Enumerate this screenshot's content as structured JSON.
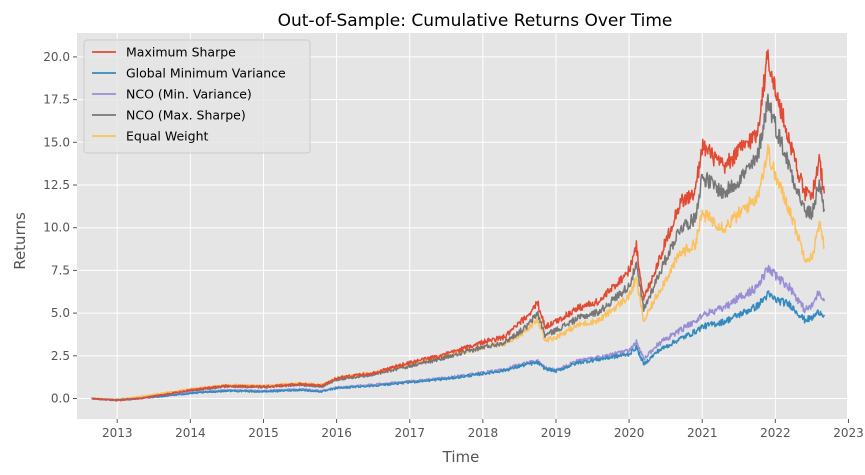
{
  "chart_data": {
    "type": "line",
    "title": "Out-of-Sample: Cumulative Returns Over Time",
    "xlabel": "Time",
    "ylabel": "Returns",
    "xlim": [
      2012.45,
      2022.98
    ],
    "ylim": [
      -1.2,
      21.4
    ],
    "x_ticks": [
      2013,
      2014,
      2015,
      2016,
      2017,
      2018,
      2019,
      2020,
      2021,
      2022,
      2023
    ],
    "x_tick_labels": [
      "2013",
      "2014",
      "2015",
      "2016",
      "2017",
      "2018",
      "2019",
      "2020",
      "2021",
      "2022",
      "2023"
    ],
    "y_ticks": [
      0.0,
      2.5,
      5.0,
      7.5,
      10.0,
      12.5,
      15.0,
      17.5,
      20.0
    ],
    "y_tick_labels": [
      "0.0",
      "2.5",
      "5.0",
      "7.5",
      "10.0",
      "12.5",
      "15.0",
      "17.5",
      "20.0"
    ],
    "grid": true,
    "background": "#e5e5e5",
    "legend_position": "top-left",
    "series": [
      {
        "name": "Maximum Sharpe",
        "color": "#e24a33",
        "x": [
          2012.65,
          2012.8,
          2013.0,
          2013.3,
          2013.6,
          2014.0,
          2014.5,
          2015.0,
          2015.5,
          2015.8,
          2016.0,
          2016.5,
          2017.0,
          2017.5,
          2018.0,
          2018.3,
          2018.6,
          2018.75,
          2018.85,
          2019.0,
          2019.3,
          2019.6,
          2020.0,
          2020.1,
          2020.2,
          2020.4,
          2020.7,
          2020.9,
          2021.0,
          2021.3,
          2021.5,
          2021.75,
          2021.9,
          2022.0,
          2022.2,
          2022.4,
          2022.5,
          2022.6,
          2022.67
        ],
        "y": [
          0.0,
          -0.05,
          -0.1,
          0.0,
          0.2,
          0.5,
          0.75,
          0.7,
          0.85,
          0.75,
          1.2,
          1.5,
          2.1,
          2.6,
          3.3,
          3.6,
          4.8,
          5.6,
          4.2,
          4.5,
          5.3,
          5.7,
          7.5,
          8.9,
          5.8,
          8.0,
          11.5,
          12.0,
          14.8,
          13.5,
          14.5,
          15.5,
          20.2,
          18.0,
          15.0,
          12.0,
          11.8,
          14.0,
          12.0
        ]
      },
      {
        "name": "Global Minimum Variance",
        "color": "#348abd",
        "x": [
          2012.65,
          2012.8,
          2013.0,
          2013.3,
          2013.6,
          2014.0,
          2014.5,
          2015.0,
          2015.5,
          2015.8,
          2016.0,
          2016.5,
          2017.0,
          2017.5,
          2018.0,
          2018.3,
          2018.6,
          2018.75,
          2018.85,
          2019.0,
          2019.3,
          2019.6,
          2020.0,
          2020.1,
          2020.2,
          2020.4,
          2020.7,
          2020.9,
          2021.0,
          2021.3,
          2021.5,
          2021.75,
          2021.9,
          2022.0,
          2022.2,
          2022.4,
          2022.5,
          2022.6,
          2022.67
        ],
        "y": [
          0.0,
          -0.05,
          -0.08,
          0.0,
          0.12,
          0.3,
          0.45,
          0.4,
          0.5,
          0.4,
          0.6,
          0.75,
          0.95,
          1.15,
          1.45,
          1.65,
          2.0,
          2.1,
          1.75,
          1.6,
          2.1,
          2.3,
          2.6,
          3.0,
          2.0,
          2.8,
          3.5,
          3.9,
          4.2,
          4.5,
          4.9,
          5.4,
          6.1,
          5.8,
          5.5,
          4.6,
          4.7,
          5.1,
          4.9
        ]
      },
      {
        "name": "NCO (Min. Variance)",
        "color": "#988ed5",
        "x": [
          2012.65,
          2012.8,
          2013.0,
          2013.3,
          2013.6,
          2014.0,
          2014.5,
          2015.0,
          2015.5,
          2015.8,
          2016.0,
          2016.5,
          2017.0,
          2017.5,
          2018.0,
          2018.3,
          2018.6,
          2018.75,
          2018.85,
          2019.0,
          2019.3,
          2019.6,
          2020.0,
          2020.1,
          2020.2,
          2020.4,
          2020.7,
          2020.9,
          2021.0,
          2021.3,
          2021.5,
          2021.75,
          2021.9,
          2022.0,
          2022.2,
          2022.4,
          2022.5,
          2022.6,
          2022.67
        ],
        "y": [
          0.0,
          -0.05,
          -0.08,
          0.0,
          0.15,
          0.35,
          0.5,
          0.45,
          0.55,
          0.45,
          0.65,
          0.8,
          1.0,
          1.2,
          1.5,
          1.7,
          2.1,
          2.2,
          1.8,
          1.65,
          2.2,
          2.4,
          2.8,
          3.3,
          2.3,
          3.2,
          4.0,
          4.5,
          4.9,
          5.3,
          5.9,
          6.5,
          7.6,
          7.2,
          6.5,
          5.2,
          5.4,
          6.3,
          5.7
        ]
      },
      {
        "name": "NCO (Max. Sharpe)",
        "color": "#777777",
        "x": [
          2012.65,
          2012.8,
          2013.0,
          2013.3,
          2013.6,
          2014.0,
          2014.5,
          2015.0,
          2015.5,
          2015.8,
          2016.0,
          2016.5,
          2017.0,
          2017.5,
          2018.0,
          2018.3,
          2018.6,
          2018.75,
          2018.85,
          2019.0,
          2019.3,
          2019.6,
          2020.0,
          2020.1,
          2020.2,
          2020.4,
          2020.7,
          2020.9,
          2021.0,
          2021.3,
          2021.5,
          2021.75,
          2021.9,
          2022.0,
          2022.2,
          2022.4,
          2022.5,
          2022.6,
          2022.67
        ],
        "y": [
          0.0,
          -0.05,
          -0.12,
          0.0,
          0.2,
          0.45,
          0.7,
          0.65,
          0.8,
          0.7,
          1.1,
          1.4,
          1.9,
          2.4,
          3.0,
          3.3,
          4.2,
          5.0,
          3.7,
          4.0,
          4.7,
          5.1,
          6.6,
          7.8,
          5.2,
          7.2,
          10.0,
          10.5,
          13.0,
          12.0,
          12.8,
          14.0,
          17.5,
          16.0,
          13.5,
          11.0,
          10.8,
          12.6,
          11.1
        ]
      },
      {
        "name": "Equal Weight",
        "color": "#fbc15e",
        "x": [
          2012.65,
          2012.8,
          2013.0,
          2013.3,
          2013.6,
          2014.0,
          2014.5,
          2015.0,
          2015.5,
          2015.8,
          2016.0,
          2016.5,
          2017.0,
          2017.5,
          2018.0,
          2018.3,
          2018.6,
          2018.75,
          2018.85,
          2019.0,
          2019.3,
          2019.6,
          2020.0,
          2020.1,
          2020.2,
          2020.4,
          2020.7,
          2020.9,
          2021.0,
          2021.3,
          2021.5,
          2021.75,
          2021.9,
          2022.0,
          2022.2,
          2022.4,
          2022.5,
          2022.6,
          2022.67
        ],
        "y": [
          0.0,
          -0.05,
          -0.05,
          0.1,
          0.3,
          0.55,
          0.8,
          0.75,
          0.9,
          0.8,
          1.2,
          1.5,
          2.0,
          2.5,
          3.0,
          3.2,
          4.0,
          4.6,
          3.4,
          3.6,
          4.3,
          4.6,
          6.0,
          7.0,
          4.5,
          6.2,
          8.5,
          9.0,
          10.8,
          10.0,
          10.8,
          11.8,
          14.5,
          13.0,
          11.0,
          8.3,
          8.2,
          10.2,
          8.9
        ]
      }
    ]
  }
}
